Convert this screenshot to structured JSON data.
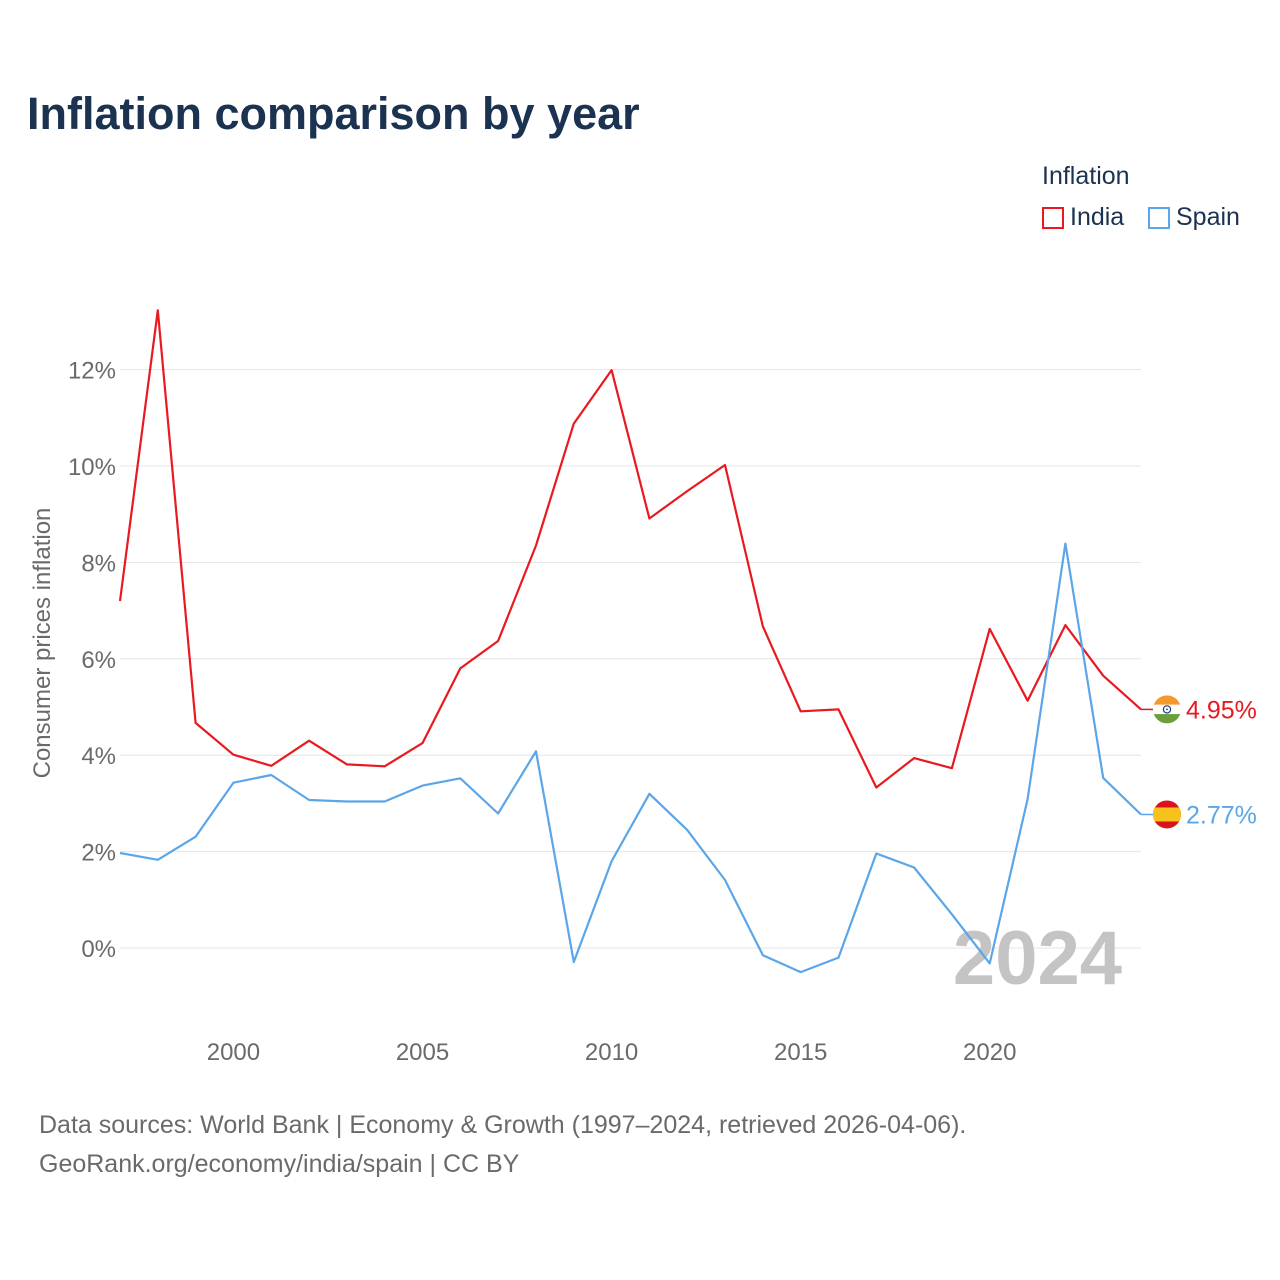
{
  "title": "Inflation comparison by year",
  "legend": {
    "title": "Inflation",
    "items": [
      {
        "label": "India",
        "color": "#e8191f"
      },
      {
        "label": "Spain",
        "color": "#5ba6e8"
      }
    ]
  },
  "footer": {
    "line1": "Data sources: World Bank | Economy & Growth (1997–2024, retrieved 2026-04-06).",
    "line2": "GeoRank.org/economy/india/spain | CC BY"
  },
  "chart_data": {
    "type": "line",
    "title": "Inflation comparison by year",
    "xlabel": "",
    "ylabel": "Consumer prices inflation",
    "xlim": [
      1997,
      2024
    ],
    "ylim": [
      -1.5,
      13.5
    ],
    "x_ticks": [
      2000,
      2005,
      2010,
      2015,
      2020
    ],
    "x_tick_labels": [
      "2000",
      "2005",
      "2010",
      "2015",
      "2020"
    ],
    "y_ticks": [
      0,
      2,
      4,
      6,
      8,
      10,
      12
    ],
    "y_tick_labels": [
      "0%",
      "2%",
      "4%",
      "6%",
      "8%",
      "10%",
      "12%"
    ],
    "grid": true,
    "watermark_year": "2024",
    "x": [
      1997,
      1998,
      1999,
      2000,
      2001,
      2002,
      2003,
      2004,
      2005,
      2006,
      2007,
      2008,
      2009,
      2010,
      2011,
      2012,
      2013,
      2014,
      2015,
      2016,
      2017,
      2018,
      2019,
      2020,
      2021,
      2022,
      2023,
      2024
    ],
    "series": [
      {
        "name": "India",
        "color": "#e8191f",
        "end_label": "4.95%",
        "values": [
          7.2,
          13.23,
          4.67,
          4.01,
          3.78,
          4.3,
          3.81,
          3.77,
          4.25,
          5.8,
          6.37,
          8.35,
          10.88,
          11.99,
          8.91,
          9.48,
          10.02,
          6.67,
          4.91,
          4.95,
          3.33,
          3.94,
          3.73,
          6.62,
          5.13,
          6.7,
          5.65,
          4.95
        ]
      },
      {
        "name": "Spain",
        "color": "#5ba6e8",
        "end_label": "2.77%",
        "values": [
          1.97,
          1.83,
          2.31,
          3.43,
          3.59,
          3.07,
          3.04,
          3.04,
          3.37,
          3.52,
          2.79,
          4.08,
          -0.29,
          1.8,
          3.2,
          2.45,
          1.41,
          -0.15,
          -0.5,
          -0.2,
          1.96,
          1.67,
          0.7,
          -0.32,
          3.09,
          8.39,
          3.53,
          2.77
        ]
      }
    ]
  }
}
